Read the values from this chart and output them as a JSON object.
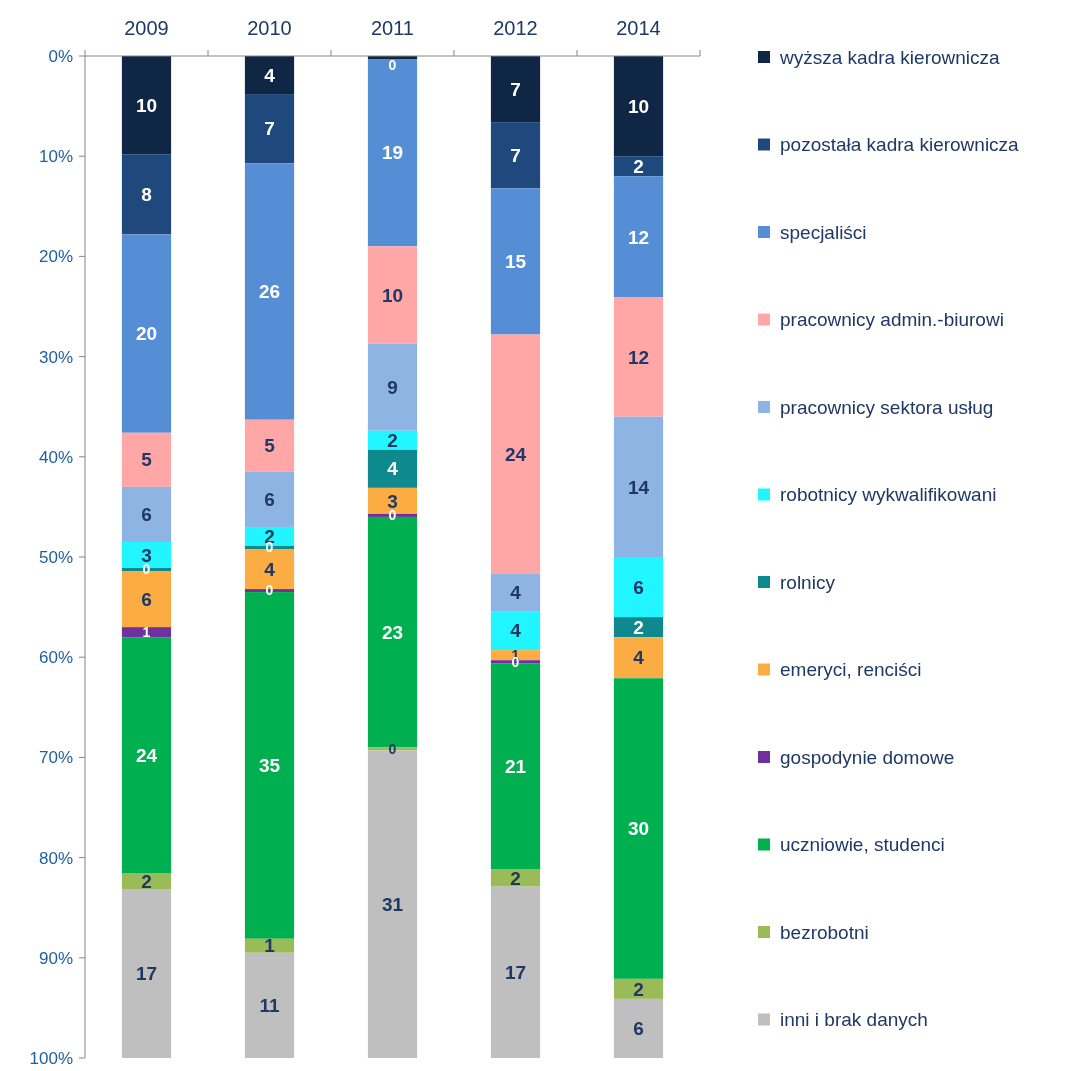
{
  "chart_data": {
    "type": "bar",
    "stacked": true,
    "categories": [
      "2009",
      "2010",
      "2011",
      "2012",
      "2014"
    ],
    "ylim": [
      100,
      0
    ],
    "yticks": [
      {
        "value": 0,
        "label": "0%"
      },
      {
        "value": 10,
        "label": "10%"
      },
      {
        "value": 20,
        "label": "20%"
      },
      {
        "value": 30,
        "label": "30%"
      },
      {
        "value": 40,
        "label": "40%"
      },
      {
        "value": 50,
        "label": "50%"
      },
      {
        "value": 60,
        "label": "60%"
      },
      {
        "value": 70,
        "label": "70%"
      },
      {
        "value": 80,
        "label": "80%"
      },
      {
        "value": 90,
        "label": "90%"
      },
      {
        "value": 100,
        "label": "100%"
      }
    ],
    "grid": false,
    "legend": "right",
    "series": [
      {
        "name": "wyższa kadra kierownicza",
        "color": "#0f2744",
        "values": [
          9.8,
          3.8,
          0.3,
          6.6,
          10.0
        ],
        "value_labels": [
          "10",
          "4",
          "0",
          "7",
          "10"
        ]
      },
      {
        "name": "pozostała kadra kierownicza",
        "color": "#1f497d",
        "values": [
          8.0,
          6.9,
          null,
          6.6,
          2.0
        ],
        "value_labels": [
          "8",
          "7",
          null,
          "7",
          "2"
        ]
      },
      {
        "name": "specjaliści",
        "color": "#558ed5",
        "values": [
          19.8,
          25.6,
          18.7,
          14.6,
          12.1
        ],
        "value_labels": [
          "20",
          "26",
          "19",
          "15",
          "12"
        ]
      },
      {
        "name": "pracownicy admin.-biurowi",
        "color": "#ffa7a7",
        "values": [
          5.4,
          5.2,
          9.7,
          23.9,
          11.9
        ],
        "value_labels": [
          "5",
          "5",
          "10",
          "24",
          "12"
        ]
      },
      {
        "name": "pracownicy sektora usług",
        "color": "#8eb4e3",
        "values": [
          5.5,
          5.5,
          8.7,
          3.7,
          14.0
        ],
        "value_labels": [
          "6",
          "6",
          "9",
          "4",
          "14"
        ]
      },
      {
        "name": "robotnicy wykwalifikowani",
        "color": "#21f5ff",
        "values": [
          2.6,
          1.9,
          1.9,
          3.9,
          6.0
        ],
        "value_labels": [
          "3",
          "2",
          "2",
          "4",
          "6"
        ]
      },
      {
        "name": "rolnicy",
        "color": "#0e8a8f",
        "values": [
          0.3,
          0.3,
          3.8,
          null,
          2.0
        ],
        "value_labels": [
          "0",
          "0",
          "4",
          null,
          "2"
        ]
      },
      {
        "name": "emeryci, renciści",
        "color": "#fbac42",
        "values": [
          5.6,
          4.0,
          2.6,
          1.0,
          4.1
        ],
        "value_labels": [
          "6",
          "4",
          "3",
          "1",
          "4"
        ]
      },
      {
        "name": "gospodynie domowe",
        "color": "#7030a0",
        "values": [
          1.0,
          0.3,
          0.3,
          0.3,
          null
        ],
        "value_labels": [
          "1",
          "0",
          "0",
          "0",
          null
        ]
      },
      {
        "name": "uczniowie, studenci",
        "color": "#00b050",
        "values": [
          23.6,
          34.6,
          23.0,
          20.6,
          30.0
        ],
        "value_labels": [
          "24",
          "35",
          "23",
          "21",
          "30"
        ]
      },
      {
        "name": "bezrobotni",
        "color": "#9bbb59",
        "values": [
          1.6,
          1.4,
          0.3,
          1.7,
          2.0
        ],
        "value_labels": [
          "2",
          "1",
          "0",
          "2",
          "2"
        ]
      },
      {
        "name": "inni i brak danych",
        "color": "#bfbfbf",
        "values": [
          16.8,
          10.5,
          30.7,
          17.1,
          5.9
        ],
        "value_labels": [
          "17",
          "11",
          "31",
          "17",
          "6"
        ]
      }
    ]
  }
}
